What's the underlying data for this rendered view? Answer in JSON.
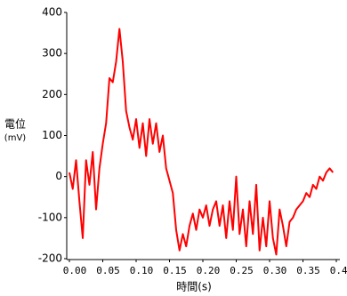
{
  "chart_data": {
    "type": "line",
    "xlabel": "時間(s)",
    "ylabel_lines": [
      "電位",
      "(mV)"
    ],
    "x": [
      0,
      0.005,
      0.01,
      0.015,
      0.02,
      0.025,
      0.03,
      0.035,
      0.04,
      0.045,
      0.05,
      0.055,
      0.06,
      0.065,
      0.07,
      0.075,
      0.08,
      0.085,
      0.09,
      0.095,
      0.1,
      0.105,
      0.11,
      0.115,
      0.12,
      0.125,
      0.13,
      0.135,
      0.14,
      0.145,
      0.15,
      0.155,
      0.16,
      0.165,
      0.17,
      0.175,
      0.18,
      0.185,
      0.19,
      0.195,
      0.2,
      0.205,
      0.21,
      0.215,
      0.22,
      0.225,
      0.23,
      0.235,
      0.24,
      0.245,
      0.25,
      0.255,
      0.26,
      0.265,
      0.27,
      0.275,
      0.28,
      0.285,
      0.29,
      0.295,
      0.3,
      0.305,
      0.31,
      0.315,
      0.32,
      0.325,
      0.33,
      0.335,
      0.34,
      0.345,
      0.35,
      0.355,
      0.36,
      0.365,
      0.37,
      0.375,
      0.38,
      0.385,
      0.39,
      0.395
    ],
    "series": [
      {
        "color": "#ff0000",
        "values": [
          10,
          -30,
          40,
          -60,
          -150,
          40,
          -20,
          60,
          -80,
          20,
          80,
          130,
          240,
          230,
          280,
          360,
          280,
          160,
          120,
          90,
          140,
          70,
          130,
          50,
          140,
          80,
          130,
          60,
          100,
          20,
          -10,
          -40,
          -130,
          -180,
          -140,
          -170,
          -120,
          -90,
          -130,
          -80,
          -100,
          -70,
          -120,
          -80,
          -60,
          -120,
          -70,
          -150,
          -60,
          -130,
          0,
          -140,
          -80,
          -170,
          -60,
          -140,
          -20,
          -180,
          -100,
          -170,
          -60,
          -150,
          -190,
          -80,
          -120,
          -170,
          -110,
          -100,
          -80,
          -70,
          -60,
          -40,
          -50,
          -20,
          -30,
          0,
          -10,
          10,
          20,
          10
        ]
      }
    ],
    "xlim": [
      0,
      0.4
    ],
    "ylim": [
      -200,
      400
    ],
    "xticks": [
      {
        "value": 0,
        "label": "0.00"
      },
      0.05,
      {
        "value": 0.1,
        "label": "0.10"
      },
      0.15,
      {
        "value": 0.2,
        "label": "0.20"
      },
      0.25,
      {
        "value": 0.3,
        "label": "0.30"
      },
      0.35,
      {
        "value": 0.4,
        "label": "0.40"
      }
    ],
    "yticks": [
      -200,
      -100,
      0,
      100,
      200,
      300,
      400
    ],
    "grid": false
  }
}
